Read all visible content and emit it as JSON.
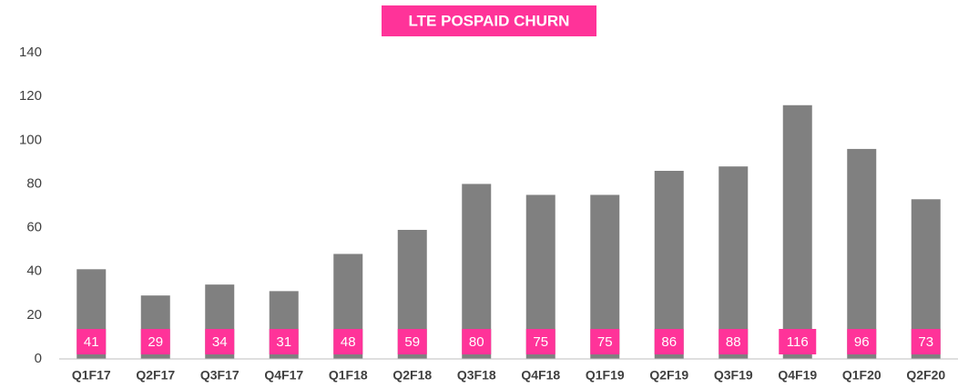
{
  "chart_data": {
    "type": "bar",
    "title": "LTE POSPAID CHURN",
    "categories": [
      "Q1F17",
      "Q2F17",
      "Q3F17",
      "Q4F17",
      "Q1F18",
      "Q2F18",
      "Q3F18",
      "Q4F18",
      "Q1F19",
      "Q2F19",
      "Q3F19",
      "Q4F19",
      "Q1F20",
      "Q2F20"
    ],
    "values": [
      41,
      29,
      34,
      31,
      48,
      59,
      80,
      75,
      75,
      86,
      88,
      116,
      96,
      73
    ],
    "color": "#808080",
    "label_color": "#ff3399",
    "ylim": [
      0,
      140
    ],
    "yticks": [
      0,
      20,
      40,
      60,
      80,
      100,
      120,
      140
    ],
    "grid": false
  }
}
